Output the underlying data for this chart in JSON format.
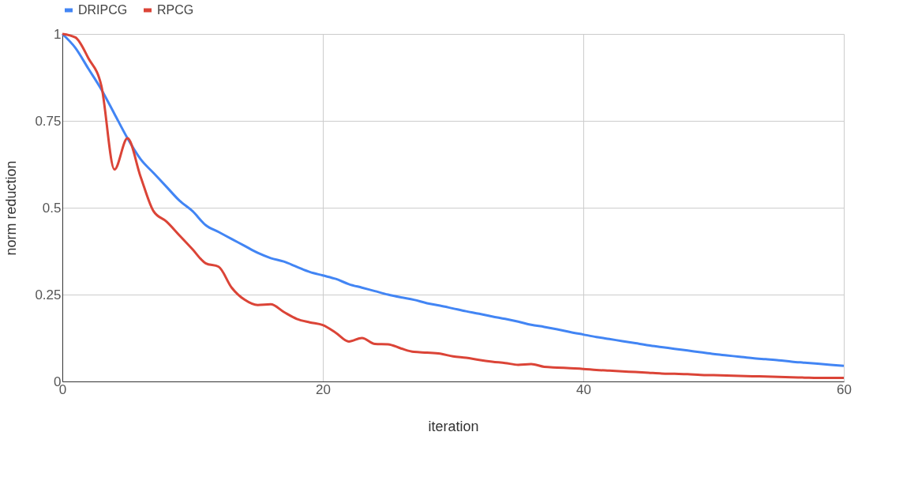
{
  "chart_data": {
    "type": "line",
    "xlabel": "iteration",
    "ylabel": "norm reduction",
    "legend": "top",
    "grid": true,
    "line_style": "solid",
    "marker": "none",
    "x": [
      0,
      1,
      2,
      3,
      4,
      5,
      6,
      7,
      8,
      9,
      10,
      11,
      12,
      13,
      14,
      15,
      16,
      17,
      18,
      19,
      20,
      21,
      22,
      23,
      24,
      25,
      26,
      27,
      28,
      29,
      30,
      31,
      32,
      33,
      34,
      35,
      36,
      37,
      38,
      39,
      40,
      41,
      42,
      43,
      44,
      45,
      46,
      47,
      48,
      49,
      50,
      51,
      52,
      53,
      54,
      55,
      56,
      57,
      58,
      59,
      60
    ],
    "xlim": [
      0,
      60
    ],
    "xticks": [
      0,
      20,
      40,
      60
    ],
    "ylim": [
      0,
      1
    ],
    "yticks": [
      0,
      0.25,
      0.5,
      0.75,
      1
    ],
    "series": [
      {
        "name": "DRIPCG",
        "color": "#4285f4",
        "values": [
          1,
          0.96,
          0.9,
          0.84,
          0.77,
          0.7,
          0.64,
          0.6,
          0.56,
          0.52,
          0.49,
          0.45,
          0.43,
          0.41,
          0.39,
          0.37,
          0.355,
          0.345,
          0.33,
          0.315,
          0.305,
          0.295,
          0.28,
          0.27,
          0.26,
          0.25,
          0.242,
          0.235,
          0.225,
          0.218,
          0.21,
          0.202,
          0.195,
          0.187,
          0.18,
          0.172,
          0.163,
          0.157,
          0.15,
          0.142,
          0.135,
          0.128,
          0.122,
          0.116,
          0.11,
          0.104,
          0.099,
          0.094,
          0.089,
          0.084,
          0.079,
          0.075,
          0.071,
          0.067,
          0.064,
          0.061,
          0.057,
          0.054,
          0.051,
          0.048,
          0.045
        ]
      },
      {
        "name": "RPCG",
        "color": "#db4437",
        "values": [
          1,
          0.99,
          0.93,
          0.85,
          0.61,
          0.7,
          0.59,
          0.49,
          0.46,
          0.42,
          0.38,
          0.34,
          0.33,
          0.27,
          0.235,
          0.22,
          0.222,
          0.2,
          0.18,
          0.17,
          0.162,
          0.14,
          0.115,
          0.125,
          0.108,
          0.107,
          0.095,
          0.085,
          0.083,
          0.08,
          0.072,
          0.068,
          0.062,
          0.057,
          0.053,
          0.048,
          0.05,
          0.042,
          0.04,
          0.038,
          0.036,
          0.033,
          0.031,
          0.029,
          0.027,
          0.025,
          0.023,
          0.022,
          0.021,
          0.019,
          0.018,
          0.017,
          0.016,
          0.015,
          0.014,
          0.013,
          0.012,
          0.011,
          0.01,
          0.01,
          0.01
        ]
      }
    ]
  }
}
